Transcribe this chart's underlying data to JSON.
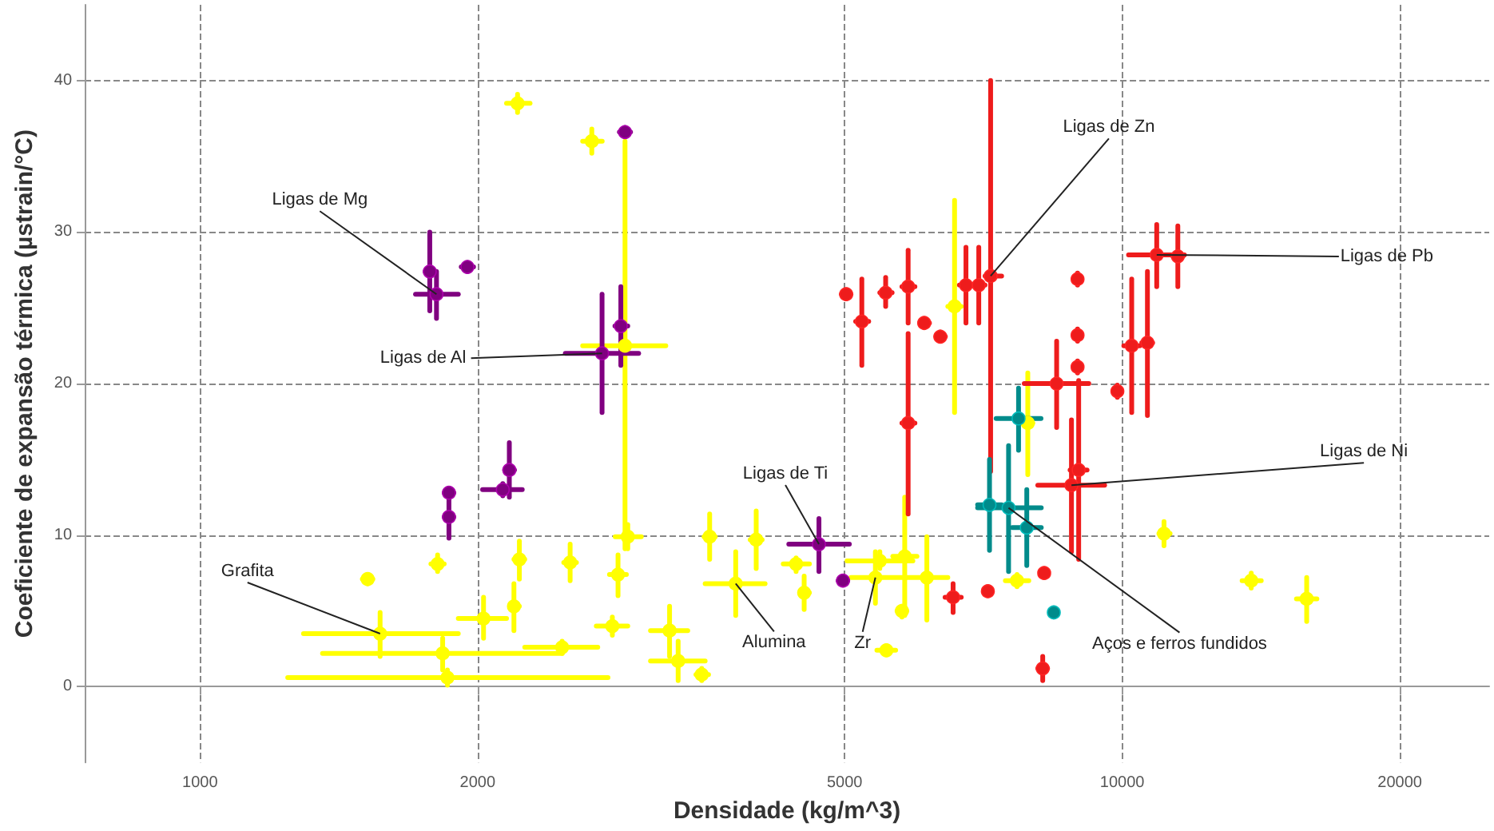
{
  "chart_data": {
    "type": "scatter",
    "xlabel": "Densidade (kg/m^3)",
    "ylabel": "Coeficiente de expansão térmica (µstrain/°C)",
    "log": "x",
    "marker": "circle",
    "xlim": [
      750,
      25000
    ],
    "xticks": [
      1000,
      2000,
      5000,
      10000,
      20000
    ],
    "ylim": [
      -5,
      45
    ],
    "yticks": [
      0,
      10,
      20,
      30,
      40
    ],
    "grid": true,
    "series": [
      {
        "color": "#ffff00",
        "x": [
          2890,
          1568,
          1855,
          1833,
          2030,
          2470,
          2210,
          2660,
          2910,
          2220,
          2520,
          2840,
          1520,
          1810,
          2190,
          2800,
          3230,
          3570,
          4010,
          3810,
          3300,
          3500,
          4430,
          4520,
          5400,
          5460,
          5810,
          6140,
          5550,
          5770,
          6580,
          7900,
          7690,
          11100,
          13800,
          15850
        ],
        "values": [
          22.5,
          3.5,
          0.6,
          2.2,
          4.5,
          2.6,
          38.5,
          36.0,
          9.9,
          8.4,
          8.2,
          7.4,
          7.1,
          8.1,
          5.3,
          4.0,
          3.7,
          9.9,
          9.7,
          6.8,
          1.7,
          0.8,
          8.1,
          6.2,
          7.2,
          8.3,
          8.6,
          7.2,
          2.4,
          5.0,
          25.1,
          17.4,
          7.0,
          10.1,
          7.0,
          5.8
        ],
        "xerrors": [
          [
            2600,
            3200
          ],
          [
            1295,
            1906
          ],
          [
            1245,
            2770
          ],
          [
            1358,
            2471
          ],
          [
            1906,
            2150
          ],
          [
            2250,
            2700
          ],
          [
            2150,
            2280
          ],
          [
            2600,
            2730
          ],
          [
            2820,
            3010
          ],
          [
            2190,
            2250
          ],
          [
            2480,
            2560
          ],
          [
            2780,
            2900
          ],
          [
            1500,
            1540
          ],
          [
            1780,
            1840
          ],
          [
            2170,
            2220
          ],
          [
            2690,
            2910
          ],
          [
            3080,
            3380
          ],
          [
            3520,
            3620
          ],
          [
            3950,
            4070
          ],
          [
            3530,
            4100
          ],
          [
            3080,
            3530
          ],
          [
            3450,
            3560
          ],
          [
            4290,
            4580
          ],
          [
            4470,
            4580
          ],
          [
            5080,
            5830
          ],
          [
            5030,
            5930
          ],
          [
            5640,
            5990
          ],
          [
            5830,
            6470
          ],
          [
            5420,
            5680
          ],
          [
            5700,
            5840
          ],
          [
            6470,
            6690
          ],
          [
            7800,
            8000
          ],
          [
            7470,
            7920
          ],
          [
            10960,
            11270
          ],
          [
            13490,
            14150
          ],
          [
            15450,
            16260
          ]
        ],
        "errors": [
          [
            9.1,
            36.0
          ],
          [
            2.0,
            4.9
          ],
          [
            0.1,
            1.1
          ],
          [
            1.1,
            3.2
          ],
          [
            3.2,
            5.9
          ],
          [
            2.2,
            3.0
          ],
          [
            37.9,
            39.1
          ],
          [
            35.2,
            36.8
          ],
          [
            9.1,
            10.7
          ],
          [
            7.1,
            9.6
          ],
          [
            7.0,
            9.4
          ],
          [
            6.0,
            8.7
          ],
          [
            6.8,
            7.4
          ],
          [
            7.6,
            8.7
          ],
          [
            3.7,
            6.8
          ],
          [
            3.4,
            4.6
          ],
          [
            2.0,
            5.3
          ],
          [
            8.4,
            11.4
          ],
          [
            7.8,
            11.6
          ],
          [
            4.7,
            8.9
          ],
          [
            0.4,
            3.0
          ],
          [
            0.4,
            1.2
          ],
          [
            7.6,
            8.5
          ],
          [
            5.1,
            7.3
          ],
          [
            5.5,
            8.9
          ],
          [
            7.8,
            8.9
          ],
          [
            4.7,
            12.5
          ],
          [
            4.4,
            9.9
          ],
          [
            2.1,
            2.7
          ],
          [
            4.6,
            5.3
          ],
          [
            18.1,
            32.1
          ],
          [
            14.0,
            20.7
          ],
          [
            6.6,
            7.4
          ],
          [
            9.3,
            10.9
          ],
          [
            6.5,
            7.5
          ],
          [
            4.3,
            7.2
          ]
        ]
      },
      {
        "color": "#800080",
        "x": [
          1775,
          1805,
          1950,
          2860,
          2729,
          2890,
          2165,
          2130,
          1862,
          1862,
          4690,
          4980
        ],
        "values": [
          27.4,
          25.9,
          27.7,
          23.8,
          22.0,
          36.6,
          14.3,
          13.0,
          11.2,
          12.8,
          9.4,
          7.0
        ],
        "xerrors": [
          [
            1754,
            1795
          ],
          [
            1713,
            1906
          ],
          [
            1920,
            1980
          ],
          [
            2818,
            2910
          ],
          [
            2490,
            2990
          ],
          [
            2850,
            2930
          ],
          [
            2140,
            2193
          ],
          [
            2025,
            2236
          ],
          [
            1840,
            1885
          ],
          [
            1840,
            1885
          ],
          [
            4350,
            5060
          ],
          [
            4920,
            5040
          ]
        ],
        "errors": [
          [
            24.8,
            30.0
          ],
          [
            24.3,
            27.4
          ],
          [
            27.4,
            28.0
          ],
          [
            21.2,
            26.4
          ],
          [
            18.1,
            25.9
          ],
          [
            36.3,
            36.9
          ],
          [
            12.5,
            16.1
          ],
          [
            12.6,
            13.4
          ],
          [
            9.8,
            12.5
          ],
          [
            12.5,
            13.1
          ],
          [
            7.6,
            11.1
          ],
          [
            6.7,
            7.3
          ]
        ]
      },
      {
        "color": "#ee1c1c",
        "x": [
          7200,
          5220,
          5020,
          5540,
          5860,
          5860,
          6770,
          6990,
          6100,
          6350,
          8945,
          8945,
          8945,
          8810,
          8490,
          8970,
          10240,
          10650,
          10900,
          11490,
          9880,
          7150,
          8230,
          8200,
          6556
        ],
        "values": [
          27.1,
          24.1,
          25.9,
          26.0,
          26.4,
          17.4,
          26.5,
          26.5,
          24.0,
          23.1,
          26.9,
          23.2,
          21.1,
          13.3,
          20.0,
          14.3,
          22.5,
          22.7,
          28.5,
          28.4,
          19.5,
          6.3,
          7.5,
          1.2,
          5.9
        ],
        "xerrors": [
          [
            7100,
            7400
          ],
          [
            5140,
            5310
          ],
          [
            4960,
            5080
          ],
          [
            5460,
            5630
          ],
          [
            5770,
            5960
          ],
          [
            5770,
            5960
          ],
          [
            6660,
            6880
          ],
          [
            6880,
            7100
          ],
          [
            6030,
            6180
          ],
          [
            6280,
            6430
          ],
          [
            8850,
            9040
          ],
          [
            8850,
            9040
          ],
          [
            8850,
            9040
          ],
          [
            8100,
            9570
          ],
          [
            7830,
            9200
          ],
          [
            8780,
            9160
          ],
          [
            10040,
            10450
          ],
          [
            10500,
            10790
          ],
          [
            10160,
            11680
          ],
          [
            11350,
            11640
          ],
          [
            9780,
            9980
          ],
          [
            7080,
            7220
          ],
          [
            8150,
            8310
          ],
          [
            8100,
            8300
          ],
          [
            6426,
            6690
          ]
        ],
        "errors": [
          [
            14.2,
            40.0
          ],
          [
            21.2,
            26.9
          ],
          [
            25.6,
            26.2
          ],
          [
            25.1,
            27.0
          ],
          [
            24.0,
            28.8
          ],
          [
            11.4,
            23.3
          ],
          [
            24.0,
            29.0
          ],
          [
            24.0,
            29.0
          ],
          [
            23.7,
            24.3
          ],
          [
            22.8,
            23.4
          ],
          [
            26.5,
            27.3
          ],
          [
            22.8,
            23.6
          ],
          [
            20.7,
            21.5
          ],
          [
            8.9,
            17.6
          ],
          [
            17.1,
            22.8
          ],
          [
            8.4,
            20.2
          ],
          [
            18.1,
            26.9
          ],
          [
            17.9,
            27.4
          ],
          [
            26.4,
            30.5
          ],
          [
            26.4,
            30.4
          ],
          [
            19.1,
            19.9
          ],
          [
            6.0,
            6.6
          ],
          [
            7.2,
            7.8
          ],
          [
            0.4,
            2.0
          ],
          [
            4.9,
            6.8
          ]
        ]
      },
      {
        "color": "#008b8b",
        "x": [
          7530,
          7720,
          8430,
          7180,
          7880
        ],
        "values": [
          11.8,
          17.7,
          4.9,
          12.0,
          10.5
        ],
        "xerrors": [
          [
            6970,
            8170
          ],
          [
            7300,
            8165
          ],
          [
            8350,
            8510
          ],
          [
            6970,
            7400
          ],
          [
            7600,
            8170
          ]
        ],
        "errors": [
          [
            7.6,
            15.9
          ],
          [
            15.6,
            19.7
          ],
          [
            4.6,
            5.2
          ],
          [
            9.0,
            15.0
          ],
          [
            8.0,
            13.0
          ]
        ]
      }
    ],
    "annotations": [
      {
        "text": "Ligas de Mg",
        "x": 1805,
        "y": 25.9
      },
      {
        "text": "Ligas de Al",
        "x": 2729,
        "y": 22.0
      },
      {
        "text": "Grafita",
        "x": 1568,
        "y": 3.5
      },
      {
        "text": "Alumina",
        "x": 3810,
        "y": 6.8
      },
      {
        "text": "Ligas de Ti",
        "x": 4690,
        "y": 9.4
      },
      {
        "text": "Zr",
        "x": 5400,
        "y": 7.2
      },
      {
        "text": "Ligas de Zn",
        "x": 7200,
        "y": 27.1
      },
      {
        "text": "Ligas de Pb",
        "x": 10900,
        "y": 28.5
      },
      {
        "text": "Ligas de Ni",
        "x": 8810,
        "y": 13.3
      },
      {
        "text": "Aços e ferros fundidos",
        "x": 7530,
        "y": 11.8
      }
    ]
  }
}
